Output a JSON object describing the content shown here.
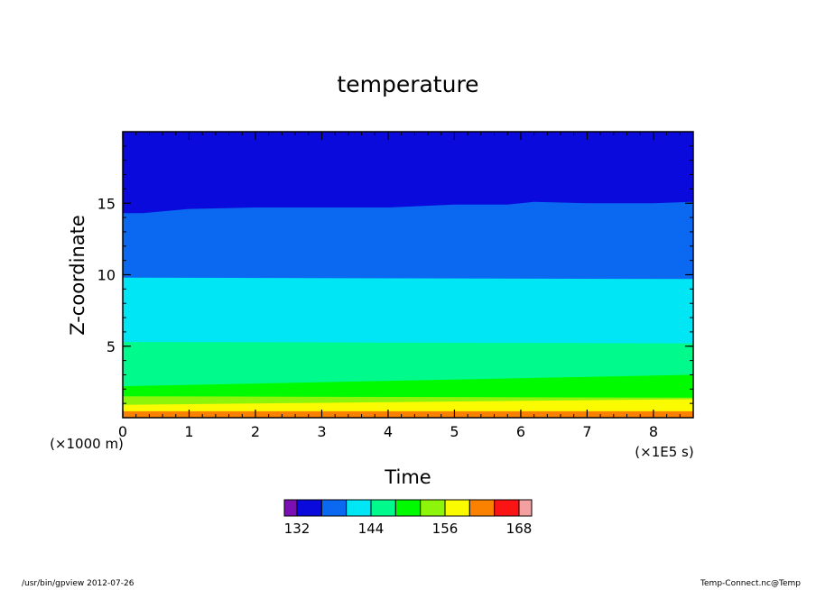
{
  "chart_data": {
    "type": "heatmap",
    "title": "temperature",
    "xlabel": "Time",
    "ylabel": "Z-coordinate",
    "x_unit_label": "(×1E5 s)",
    "y_unit_label": "(×1000 m)",
    "xlim": [
      0,
      8.6
    ],
    "ylim": [
      0,
      20
    ],
    "x_ticks": [
      0,
      1,
      2,
      3,
      4,
      5,
      6,
      7,
      8
    ],
    "x_tick_labels": [
      "0",
      "1",
      "2",
      "3",
      "4",
      "5",
      "6",
      "7",
      "8"
    ],
    "y_ticks": [
      5,
      10,
      15
    ],
    "y_tick_labels": [
      "5",
      "10",
      "15"
    ],
    "grid": false,
    "colorbar": {
      "levels": [
        132,
        136,
        140,
        144,
        148,
        152,
        156,
        160,
        164,
        168
      ],
      "tick_values": [
        132,
        144,
        156,
        168
      ],
      "tick_labels": [
        "132",
        "144",
        "156",
        "168"
      ],
      "colors": [
        "#7a0fb4",
        "#0a0adc",
        "#0a69f0",
        "#00e6f5",
        "#00fa8c",
        "#00fa00",
        "#8cf50a",
        "#fafa00",
        "#fa8200",
        "#fa1414",
        "#f5a0a0"
      ]
    },
    "bands": [
      {
        "range": "<=168",
        "color": "#fa8200",
        "y_bottom": 0,
        "y_top": 0.45
      },
      {
        "range": "160-164",
        "color": "#fafa00",
        "y_bottom": 0.45,
        "y_top_left": 0.9,
        "y_top_right": 1.3
      },
      {
        "range": "156-160",
        "color": "#8cf50a",
        "y_top_left": 1.5,
        "y_top_right": 1.4
      },
      {
        "range": "152-156",
        "color": "#00fa00",
        "y_top_left": 2.2,
        "y_top_right": 3.0
      },
      {
        "range": "148-152",
        "color": "#00fa8c",
        "y_top_left": 5.3,
        "y_top_right": 5.2
      },
      {
        "range": "144-148",
        "color": "#00e6f5",
        "y_top_left": 9.8,
        "y_top_right": 9.7
      },
      {
        "range": "140-144",
        "color": "#0a69f0",
        "y_top_profile": [
          [
            0,
            14.3
          ],
          [
            0.3,
            14.3
          ],
          [
            1.0,
            14.6
          ],
          [
            2.0,
            14.7
          ],
          [
            3.0,
            14.7
          ],
          [
            4.0,
            14.7
          ],
          [
            5.0,
            14.9
          ],
          [
            5.8,
            14.9
          ],
          [
            6.2,
            15.1
          ],
          [
            7.0,
            15.0
          ],
          [
            8.0,
            15.0
          ],
          [
            8.6,
            15.1
          ]
        ]
      },
      {
        "range": "136-140",
        "color": "#0a0adc",
        "y_bottom": 15.0,
        "y_top": 20
      }
    ]
  },
  "footer": {
    "left": "/usr/bin/gpview   2012-07-26",
    "right": "Temp-Connect.nc@Temp"
  }
}
